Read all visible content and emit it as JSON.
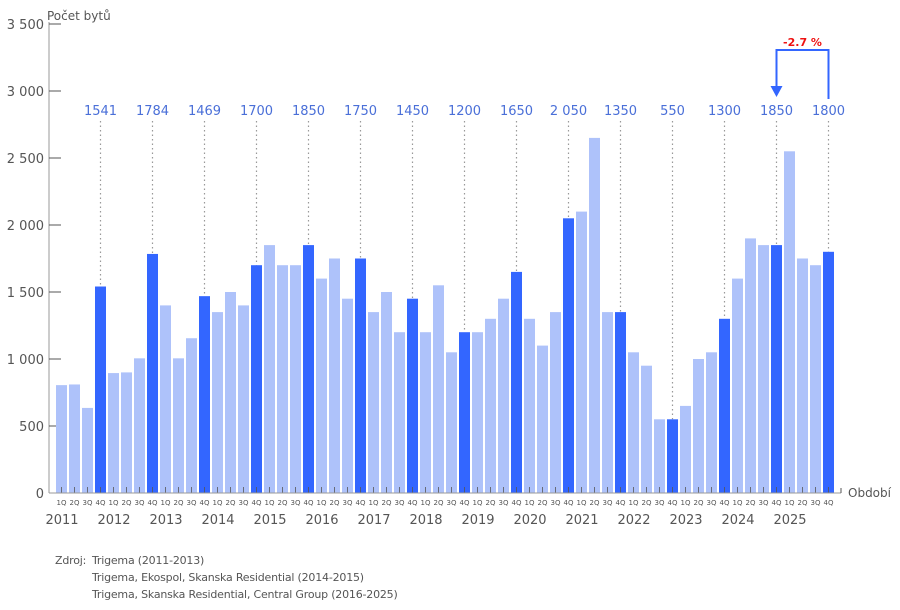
{
  "chart_data": {
    "type": "bar",
    "title": "",
    "ylabel": "Počet bytů",
    "xlabel": "Období",
    "ylim": [
      0,
      3500
    ],
    "yticks": [
      0,
      500,
      1000,
      1500,
      2000,
      2500,
      3000,
      3500
    ],
    "ytick_labels": [
      "0",
      "500",
      "1 000",
      "1 500",
      "2 000",
      "2 500",
      "3 000",
      "3 500"
    ],
    "years": [
      "2011",
      "2012",
      "2013",
      "2014",
      "2015",
      "2016",
      "2017",
      "2018",
      "2019",
      "2020",
      "2021",
      "2022",
      "2023",
      "2024",
      "2025"
    ],
    "quarters": [
      "1Q",
      "2Q",
      "3Q",
      "4Q"
    ],
    "values": [
      805,
      810,
      635,
      1541,
      895,
      900,
      1005,
      1784,
      1400,
      1005,
      1155,
      1469,
      1350,
      1500,
      1400,
      1700,
      1850,
      1700,
      1700,
      1850,
      1600,
      1750,
      1450,
      1750,
      1350,
      1500,
      1200,
      1450,
      1200,
      1550,
      1050,
      1200,
      1200,
      1300,
      1450,
      1650,
      1300,
      1100,
      1350,
      2050,
      2100,
      2650,
      1350,
      1350,
      1050,
      950,
      550,
      550,
      650,
      1000,
      1050,
      1300,
      1600,
      1900,
      1850,
      1850,
      2550,
      1750,
      1700,
      1800
    ],
    "q4_labels": [
      "1541",
      "1784",
      "1469",
      "1700",
      "1850",
      "1750",
      "1450",
      "1200",
      "1650",
      "2 050",
      "1350",
      "550",
      "1300",
      "1850",
      "1800"
    ],
    "annotation": {
      "text": "-2.7 %",
      "from": "2025 4Q",
      "to": "2024 4Q"
    },
    "colors": {
      "q4_bar": "#3366ff",
      "other_bar": "#aec2fa",
      "label": "#4a6fd8",
      "annotation_text": "#ee1111",
      "annotation_line": "#3366ff",
      "axis": "#999999",
      "text": "#555555"
    },
    "grid": false,
    "legend": "none"
  },
  "source": {
    "label": "Zdroj:",
    "lines": [
      "Trigema (2011-2013)",
      "Trigema, Ekospol, Skanska Residential (2014-2015)",
      "Trigema, Skanska Residential, Central Group (2016-2025)"
    ]
  }
}
